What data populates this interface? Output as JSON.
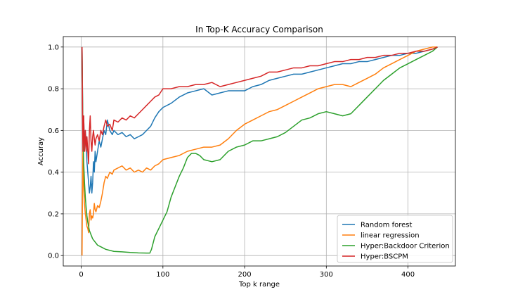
{
  "chart_data": {
    "type": "line",
    "title": "In Top-K Accuracy Comparison",
    "xlabel": "Top k range",
    "ylabel": "Accuray",
    "xlim": [
      -22,
      458
    ],
    "ylim": [
      -0.05,
      1.05
    ],
    "xticks": [
      0,
      100,
      200,
      300,
      400
    ],
    "xtick_labels": [
      "0",
      "100",
      "200",
      "300",
      "400"
    ],
    "yticks": [
      0.0,
      0.2,
      0.4,
      0.6,
      0.8,
      1.0
    ],
    "ytick_labels": [
      "0.0",
      "0.2",
      "0.4",
      "0.6",
      "0.8",
      "1.0"
    ],
    "grid": true,
    "legend_position": "lower-right",
    "series": [
      {
        "name": "Random forest",
        "color": "#1f77b4",
        "x": [
          1,
          2,
          3,
          4,
          5,
          6,
          7,
          8,
          9,
          10,
          11,
          12,
          13,
          14,
          15,
          16,
          17,
          18,
          20,
          22,
          24,
          26,
          28,
          30,
          32,
          35,
          38,
          40,
          45,
          50,
          55,
          60,
          65,
          70,
          75,
          80,
          85,
          90,
          95,
          100,
          110,
          120,
          130,
          140,
          150,
          160,
          170,
          180,
          190,
          200,
          210,
          220,
          230,
          240,
          250,
          260,
          270,
          280,
          290,
          300,
          310,
          320,
          330,
          340,
          350,
          360,
          370,
          380,
          390,
          400,
          410,
          420,
          430,
          436
        ],
        "values": [
          1.0,
          0.6,
          0.67,
          0.5,
          0.6,
          0.55,
          0.45,
          0.4,
          0.35,
          0.3,
          0.33,
          0.38,
          0.3,
          0.35,
          0.45,
          0.4,
          0.5,
          0.45,
          0.5,
          0.55,
          0.52,
          0.56,
          0.6,
          0.58,
          0.65,
          0.6,
          0.58,
          0.6,
          0.58,
          0.59,
          0.57,
          0.58,
          0.56,
          0.57,
          0.58,
          0.6,
          0.62,
          0.66,
          0.69,
          0.71,
          0.73,
          0.76,
          0.78,
          0.79,
          0.8,
          0.77,
          0.78,
          0.79,
          0.79,
          0.79,
          0.81,
          0.82,
          0.84,
          0.85,
          0.86,
          0.87,
          0.87,
          0.88,
          0.89,
          0.9,
          0.91,
          0.92,
          0.92,
          0.93,
          0.93,
          0.94,
          0.95,
          0.96,
          0.96,
          0.97,
          0.97,
          0.98,
          0.99,
          1.0
        ]
      },
      {
        "name": "linear regression",
        "color": "#ff7f0e",
        "x": [
          1,
          2,
          3,
          4,
          5,
          6,
          7,
          8,
          9,
          10,
          11,
          12,
          13,
          14,
          15,
          16,
          17,
          18,
          20,
          22,
          24,
          26,
          28,
          30,
          32,
          35,
          38,
          40,
          45,
          50,
          55,
          60,
          65,
          70,
          75,
          80,
          85,
          90,
          95,
          100,
          110,
          120,
          130,
          140,
          150,
          160,
          170,
          180,
          190,
          200,
          210,
          220,
          230,
          240,
          250,
          260,
          270,
          280,
          290,
          300,
          310,
          320,
          330,
          340,
          350,
          360,
          370,
          380,
          390,
          400,
          410,
          420,
          430,
          436
        ],
        "values": [
          0.0,
          0.5,
          0.33,
          0.25,
          0.2,
          0.17,
          0.14,
          0.13,
          0.11,
          0.2,
          0.22,
          0.17,
          0.19,
          0.18,
          0.2,
          0.25,
          0.22,
          0.21,
          0.24,
          0.23,
          0.26,
          0.3,
          0.35,
          0.38,
          0.37,
          0.4,
          0.39,
          0.41,
          0.42,
          0.43,
          0.41,
          0.42,
          0.4,
          0.41,
          0.4,
          0.42,
          0.41,
          0.43,
          0.44,
          0.46,
          0.47,
          0.48,
          0.5,
          0.51,
          0.52,
          0.52,
          0.53,
          0.56,
          0.6,
          0.63,
          0.65,
          0.67,
          0.69,
          0.7,
          0.72,
          0.74,
          0.76,
          0.78,
          0.8,
          0.81,
          0.82,
          0.82,
          0.81,
          0.83,
          0.85,
          0.87,
          0.9,
          0.92,
          0.94,
          0.96,
          0.98,
          0.99,
          1.0,
          1.0
        ]
      },
      {
        "name": "Hyper:Backdoor Criterion",
        "color": "#2ca02c",
        "x": [
          1,
          2,
          3,
          4,
          5,
          6,
          7,
          8,
          9,
          10,
          12,
          14,
          16,
          18,
          20,
          25,
          30,
          40,
          50,
          60,
          70,
          80,
          84,
          86,
          88,
          90,
          95,
          100,
          105,
          110,
          115,
          120,
          125,
          130,
          135,
          140,
          145,
          150,
          160,
          170,
          180,
          190,
          200,
          210,
          220,
          230,
          240,
          250,
          260,
          270,
          280,
          290,
          300,
          310,
          320,
          330,
          340,
          350,
          360,
          370,
          380,
          390,
          400,
          410,
          420,
          430,
          436
        ],
        "values": [
          1.0,
          0.6,
          0.45,
          0.35,
          0.28,
          0.23,
          0.19,
          0.16,
          0.14,
          0.12,
          0.1,
          0.08,
          0.07,
          0.06,
          0.05,
          0.04,
          0.03,
          0.02,
          0.018,
          0.015,
          0.013,
          0.012,
          0.012,
          0.03,
          0.06,
          0.09,
          0.13,
          0.17,
          0.21,
          0.28,
          0.33,
          0.38,
          0.42,
          0.47,
          0.49,
          0.49,
          0.48,
          0.46,
          0.45,
          0.46,
          0.5,
          0.52,
          0.53,
          0.55,
          0.55,
          0.56,
          0.57,
          0.59,
          0.62,
          0.65,
          0.66,
          0.68,
          0.69,
          0.68,
          0.67,
          0.68,
          0.72,
          0.76,
          0.8,
          0.84,
          0.87,
          0.9,
          0.92,
          0.94,
          0.96,
          0.98,
          1.0
        ]
      },
      {
        "name": "Hyper:BSCPM",
        "color": "#d62728",
        "x": [
          1,
          2,
          3,
          4,
          5,
          6,
          7,
          8,
          9,
          10,
          11,
          12,
          13,
          14,
          15,
          16,
          17,
          18,
          20,
          22,
          24,
          26,
          28,
          30,
          32,
          35,
          38,
          40,
          45,
          50,
          55,
          60,
          65,
          70,
          75,
          80,
          85,
          90,
          95,
          100,
          110,
          120,
          130,
          140,
          150,
          160,
          170,
          180,
          190,
          200,
          210,
          220,
          230,
          240,
          250,
          260,
          270,
          280,
          290,
          300,
          310,
          320,
          330,
          340,
          350,
          360,
          370,
          380,
          390,
          400,
          410,
          420,
          430,
          436
        ],
        "values": [
          1.0,
          0.5,
          0.67,
          0.5,
          0.6,
          0.5,
          0.57,
          0.5,
          0.44,
          0.6,
          0.67,
          0.55,
          0.5,
          0.57,
          0.6,
          0.56,
          0.53,
          0.56,
          0.58,
          0.55,
          0.6,
          0.58,
          0.62,
          0.65,
          0.62,
          0.63,
          0.6,
          0.65,
          0.64,
          0.66,
          0.65,
          0.67,
          0.66,
          0.68,
          0.7,
          0.72,
          0.74,
          0.76,
          0.77,
          0.8,
          0.8,
          0.81,
          0.81,
          0.82,
          0.82,
          0.83,
          0.81,
          0.82,
          0.83,
          0.84,
          0.85,
          0.86,
          0.88,
          0.88,
          0.89,
          0.9,
          0.9,
          0.91,
          0.91,
          0.92,
          0.93,
          0.93,
          0.94,
          0.94,
          0.95,
          0.95,
          0.96,
          0.96,
          0.97,
          0.97,
          0.98,
          0.98,
          0.99,
          1.0
        ]
      }
    ]
  }
}
